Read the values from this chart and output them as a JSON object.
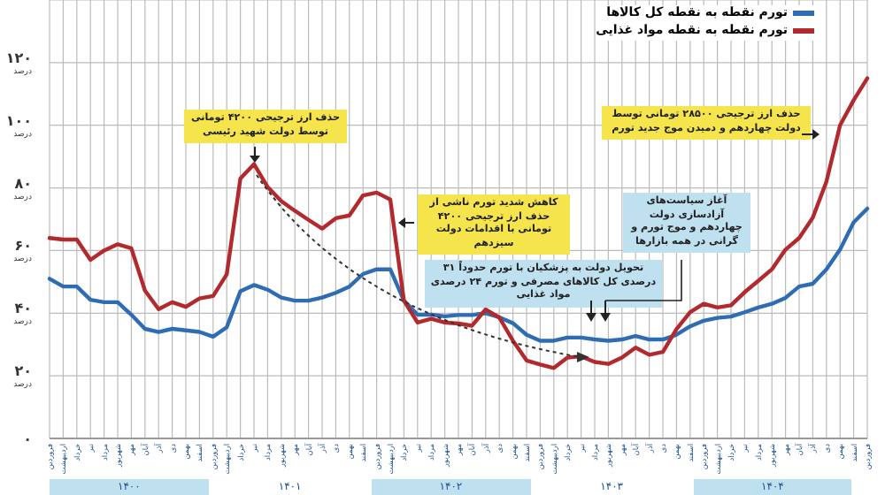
{
  "chart_data": {
    "type": "line",
    "categories": [
      "فروردین",
      "اردیبهشت",
      "خرداد",
      "تیر",
      "مرداد",
      "شهریور",
      "مهر",
      "آبان",
      "آذر",
      "دی",
      "بهمن",
      "اسفند",
      "فروردین",
      "اردیبهشت",
      "خرداد",
      "تیر",
      "مرداد",
      "شهریور",
      "مهر",
      "آبان",
      "آذر",
      "دی",
      "بهمن",
      "اسفند",
      "فروردین",
      "اردیبهشت",
      "خرداد",
      "تیر",
      "مرداد",
      "شهریور",
      "مهر",
      "آبان",
      "آذر",
      "دی",
      "بهمن",
      "اسفند",
      "فروردین",
      "اردیبهشت",
      "خرداد",
      "تیر",
      "مرداد",
      "شهریور",
      "مهر",
      "آبان",
      "آذر",
      "دی",
      "بهمن",
      "اسفند",
      "فروردین",
      "اردیبهشت",
      "خرداد",
      "تیر",
      "مرداد",
      "شهریور",
      "مهر",
      "آبان",
      "آذر",
      "دی",
      "بهمن",
      "اسفند",
      "فروردین"
    ],
    "series": [
      {
        "name": "تورم نقطه به نقطه کل کالاها",
        "color": "#2e6db4",
        "values": [
          51,
          48.5,
          48.5,
          44.3,
          43.5,
          43.5,
          39.5,
          35,
          34,
          35,
          34.5,
          34,
          32.5,
          35.5,
          47,
          49,
          47.5,
          45,
          44,
          44,
          45,
          46.5,
          48.5,
          52.5,
          54,
          54,
          44,
          39.5,
          39.5,
          39,
          39.4,
          39.4,
          40,
          38.7,
          36.8,
          33.1,
          31.2,
          31.2,
          32.2,
          32.2,
          31.6,
          31.2,
          31.6,
          32.7,
          31.6,
          31.6,
          33.1,
          35.8,
          37.6,
          38.5,
          38.9,
          40.3,
          41.8,
          43,
          44.9,
          48.5,
          49.4,
          54,
          60.3,
          69,
          73.4
        ]
      },
      {
        "name": "تورم نقطه به نقطه مواد غذایی",
        "color": "#b22a2e",
        "values": [
          64,
          63.5,
          63.5,
          57,
          60,
          62,
          60.7,
          47.2,
          41.3,
          43.5,
          42,
          44.7,
          45.5,
          52.4,
          83,
          87.6,
          80.3,
          75.8,
          72.7,
          69.8,
          67,
          70.3,
          71.2,
          77.6,
          78.5,
          76.3,
          44,
          37,
          38.2,
          37,
          36.7,
          36,
          41.2,
          38.6,
          31.2,
          24.9,
          23.6,
          22.5,
          25.8,
          26.2,
          24.4,
          23.8,
          25.8,
          29,
          26.7,
          27.6,
          34.9,
          40.3,
          43,
          41.8,
          42.5,
          46.7,
          50.3,
          54,
          60.3,
          64,
          70.5,
          82,
          100,
          108,
          115
        ]
      }
    ],
    "ylim": [
      0,
      140
    ],
    "yticks": [
      {
        "value": 0,
        "label": "۰"
      },
      {
        "value": 20,
        "label": "۲۰ درصد"
      },
      {
        "value": 40,
        "label": "۴۰ درصد"
      },
      {
        "value": 60,
        "label": "۶۰ درصد"
      },
      {
        "value": 80,
        "label": "۸۰ درصد"
      },
      {
        "value": 100,
        "label": "۱۰۰ درصد"
      },
      {
        "value": 120,
        "label": "۱۲۰ درصد"
      }
    ],
    "grid": true,
    "legend": "top right",
    "marker": "none",
    "line_style": "solid",
    "annotations": [
      "حذف ارز ترجیحی ۴۲۰۰ تومانی توسط دولت شهید رئیسی",
      "کاهش شدید تورم ناشی از حذف ارز ترجیحی ۴۲۰۰ تومانی با اقدامات دولت سیزدهم",
      "آغاز سیاست‌های آزادسازی دولت چهاردهم و موج تورم و گرانی در همه بازارها",
      "تحویل دولت به پزشکیان با تورم حدوداً ۳۱ درصدی کل کالاهای مصرفی و تورم ۲۴ درصدی مواد غذایی",
      "حذف ارز ترجیحی ۲۸۵۰۰ تومانی توسط دولت چهاردهم و دمیدن موج جدید تورم",
      "۱۴۰۰",
      "۱۴۰۱",
      "۱۴۰۲",
      "۱۴۰۳",
      "۱۴۰۴"
    ]
  }
}
